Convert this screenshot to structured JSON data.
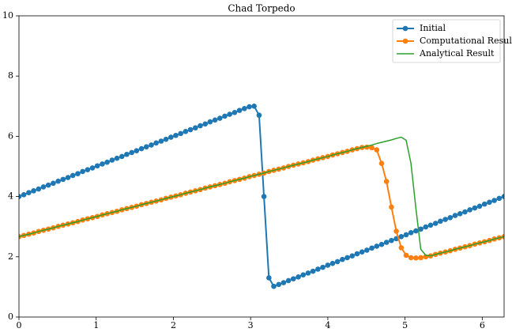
{
  "chart_data": {
    "type": "line",
    "title": "Chad Torpedo",
    "x": [
      0,
      0.063,
      0.127,
      0.19,
      0.254,
      0.317,
      0.381,
      0.444,
      0.508,
      0.571,
      0.635,
      0.698,
      0.762,
      0.825,
      0.889,
      0.952,
      1.015,
      1.079,
      1.142,
      1.206,
      1.269,
      1.333,
      1.396,
      1.46,
      1.523,
      1.587,
      1.65,
      1.714,
      1.777,
      1.841,
      1.904,
      1.968,
      2.031,
      2.094,
      2.158,
      2.221,
      2.285,
      2.348,
      2.412,
      2.475,
      2.539,
      2.602,
      2.666,
      2.729,
      2.793,
      2.856,
      2.92,
      2.983,
      3.046,
      3.11,
      3.173,
      3.237,
      3.3,
      3.364,
      3.427,
      3.491,
      3.554,
      3.618,
      3.681,
      3.745,
      3.808,
      3.872,
      3.935,
      3.999,
      4.062,
      4.125,
      4.189,
      4.252,
      4.316,
      4.379,
      4.443,
      4.506,
      4.57,
      4.633,
      4.697,
      4.76,
      4.824,
      4.887,
      4.951,
      5.014,
      5.077,
      5.141,
      5.204,
      5.268,
      5.331,
      5.395,
      5.458,
      5.522,
      5.585,
      5.649,
      5.712,
      5.776,
      5.839,
      5.903,
      5.966,
      6.03,
      6.093,
      6.156,
      6.22,
      6.283
    ],
    "series": [
      {
        "name": "Initial",
        "color": "#1f77b4",
        "marker": true,
        "values": [
          4.0,
          4.06,
          4.13,
          4.19,
          4.25,
          4.32,
          4.38,
          4.44,
          4.51,
          4.57,
          4.63,
          4.7,
          4.76,
          4.83,
          4.89,
          4.95,
          5.02,
          5.08,
          5.14,
          5.21,
          5.27,
          5.33,
          5.4,
          5.46,
          5.52,
          5.59,
          5.65,
          5.71,
          5.78,
          5.84,
          5.9,
          5.97,
          6.03,
          6.09,
          6.16,
          6.22,
          6.28,
          6.35,
          6.41,
          6.48,
          6.54,
          6.6,
          6.67,
          6.73,
          6.79,
          6.86,
          6.92,
          6.98,
          7.0,
          6.7,
          4.0,
          1.3,
          1.02,
          1.08,
          1.14,
          1.21,
          1.27,
          1.33,
          1.4,
          1.46,
          1.52,
          1.59,
          1.65,
          1.72,
          1.78,
          1.84,
          1.91,
          1.97,
          2.03,
          2.1,
          2.16,
          2.22,
          2.29,
          2.35,
          2.41,
          2.48,
          2.54,
          2.6,
          2.67,
          2.73,
          2.8,
          2.86,
          2.92,
          2.99,
          3.05,
          3.11,
          3.18,
          3.24,
          3.3,
          3.37,
          3.43,
          3.49,
          3.56,
          3.62,
          3.68,
          3.75,
          3.81,
          3.87,
          3.94,
          4.0
        ]
      },
      {
        "name": "Computational Result",
        "color": "#ff7f0e",
        "marker": true,
        "values": [
          2.67,
          2.71,
          2.75,
          2.79,
          2.84,
          2.88,
          2.92,
          2.96,
          3.01,
          3.05,
          3.09,
          3.13,
          3.17,
          3.22,
          3.26,
          3.3,
          3.34,
          3.39,
          3.43,
          3.47,
          3.51,
          3.56,
          3.6,
          3.64,
          3.68,
          3.73,
          3.77,
          3.81,
          3.85,
          3.89,
          3.94,
          3.98,
          4.02,
          4.06,
          4.11,
          4.15,
          4.19,
          4.23,
          4.28,
          4.32,
          4.36,
          4.4,
          4.44,
          4.49,
          4.53,
          4.57,
          4.61,
          4.66,
          4.7,
          4.74,
          4.78,
          4.83,
          4.87,
          4.91,
          4.95,
          5.0,
          5.04,
          5.08,
          5.12,
          5.16,
          5.21,
          5.25,
          5.29,
          5.33,
          5.38,
          5.42,
          5.46,
          5.5,
          5.55,
          5.59,
          5.63,
          5.64,
          5.62,
          5.55,
          5.1,
          4.5,
          3.65,
          2.85,
          2.3,
          2.05,
          1.97,
          1.96,
          1.97,
          2.0,
          2.03,
          2.08,
          2.12,
          2.16,
          2.2,
          2.25,
          2.29,
          2.33,
          2.37,
          2.42,
          2.46,
          2.5,
          2.54,
          2.59,
          2.63,
          2.67
        ]
      },
      {
        "name": "Analytical Result",
        "color": "#2ca02c",
        "marker": false,
        "values": [
          2.67,
          2.71,
          2.75,
          2.79,
          2.84,
          2.88,
          2.92,
          2.96,
          3.01,
          3.05,
          3.09,
          3.13,
          3.17,
          3.22,
          3.26,
          3.3,
          3.34,
          3.39,
          3.43,
          3.47,
          3.51,
          3.56,
          3.6,
          3.64,
          3.68,
          3.73,
          3.77,
          3.81,
          3.85,
          3.89,
          3.94,
          3.98,
          4.02,
          4.06,
          4.11,
          4.15,
          4.19,
          4.23,
          4.28,
          4.32,
          4.36,
          4.4,
          4.44,
          4.49,
          4.53,
          4.57,
          4.61,
          4.66,
          4.7,
          4.74,
          4.78,
          4.83,
          4.87,
          4.91,
          4.95,
          5.0,
          5.04,
          5.08,
          5.12,
          5.16,
          5.21,
          5.25,
          5.29,
          5.33,
          5.38,
          5.42,
          5.46,
          5.5,
          5.55,
          5.59,
          5.63,
          5.67,
          5.71,
          5.76,
          5.8,
          5.84,
          5.88,
          5.93,
          5.97,
          5.87,
          5.1,
          3.6,
          2.25,
          2.05,
          2.03,
          2.08,
          2.12,
          2.16,
          2.2,
          2.25,
          2.29,
          2.33,
          2.37,
          2.42,
          2.46,
          2.5,
          2.54,
          2.59,
          2.63,
          2.67
        ]
      }
    ],
    "xlim": [
      0,
      6.283
    ],
    "ylim": [
      0,
      10
    ],
    "xticks": [
      0,
      1,
      2,
      3,
      4,
      5,
      6
    ],
    "yticks": [
      0,
      2,
      4,
      6,
      8,
      10
    ],
    "legend": "upper right"
  }
}
